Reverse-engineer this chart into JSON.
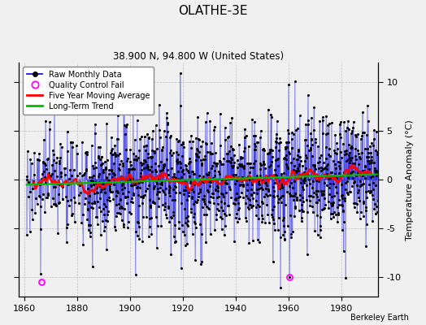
{
  "title": "OLATHE-3E",
  "subtitle": "38.900 N, 94.800 W (United States)",
  "ylabel": "Temperature Anomaly (°C)",
  "credit": "Berkeley Earth",
  "year_start": 1861,
  "year_end": 1993,
  "ylim": [
    -12,
    12
  ],
  "yticks": [
    -10,
    -5,
    0,
    5,
    10
  ],
  "xlim": [
    1858,
    1994
  ],
  "xticks": [
    1860,
    1880,
    1900,
    1920,
    1940,
    1960,
    1980
  ],
  "background_color": "#f0f0f0",
  "line_color": "#0000dd",
  "ma_color": "#ff0000",
  "trend_color": "#00bb00",
  "qc_color": "#ff00ff",
  "seed": 17,
  "noise_std": 3.0,
  "qc_year1": 1866.5,
  "qc_val1": -10.5,
  "qc_year2": 1960.5,
  "qc_val2": -10.0
}
